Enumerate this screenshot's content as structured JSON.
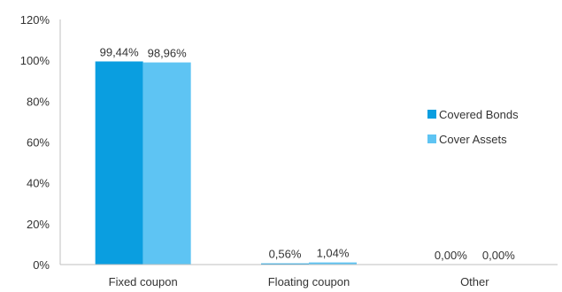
{
  "chart_data": {
    "type": "bar",
    "title": "",
    "xlabel": "",
    "ylabel": "",
    "categories": [
      "Fixed coupon",
      "Floating coupon",
      "Other"
    ],
    "series": [
      {
        "name": "Covered Bonds",
        "values": [
          99.44,
          0.56,
          0.0
        ],
        "labels": [
          "99,44%",
          "0,56%",
          "0,00%"
        ],
        "color": "#0a9ee0"
      },
      {
        "name": "Cover Assets",
        "values": [
          98.96,
          1.04,
          0.0
        ],
        "labels": [
          "98,96%",
          "1,04%",
          "0,00%"
        ],
        "color": "#5ec4f3"
      }
    ],
    "ylim": [
      0,
      120
    ],
    "yticks": [
      0,
      20,
      40,
      60,
      80,
      100,
      120
    ],
    "ytick_labels": [
      "0%",
      "20%",
      "40%",
      "60%",
      "80%",
      "100%",
      "120%"
    ],
    "grid": false,
    "legend_position": "right"
  }
}
